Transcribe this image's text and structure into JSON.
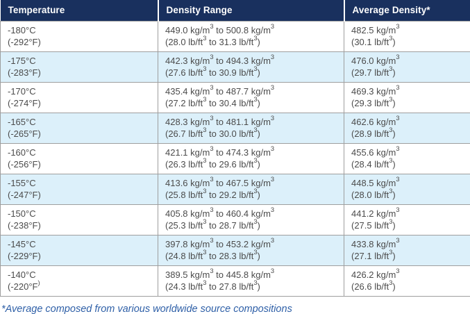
{
  "colors": {
    "header_bg": "#19305e",
    "header_text": "#ffffff",
    "row_alt_bg": "#dcf0fa",
    "border": "#9e9e9e",
    "cell_text": "#4b4b4b",
    "footnote_text": "#2e5fa7"
  },
  "table": {
    "columns": [
      {
        "label": "Temperature"
      },
      {
        "label": "Density Range"
      },
      {
        "label": "Average Density*"
      }
    ],
    "rows": [
      {
        "temperature": [
          "-180°C",
          "(-292°F)"
        ],
        "density_range": [
          "449.0 kg/m^3 to 500.8 kg/m^3",
          "(28.0 lb/ft^3 to 31.3 lb/ft^3)"
        ],
        "average_density": [
          "482.5 kg/m^3",
          "(30.1 lb/ft^3)"
        ]
      },
      {
        "temperature": [
          "-175°C",
          "(-283°F)"
        ],
        "density_range": [
          "442.3 kg/m^3 to 494.3 kg/m^3",
          "(27.6 lb/ft^3 to 30.9 lb/ft^3)"
        ],
        "average_density": [
          "476.0 kg/m^3",
          "(29.7 lb/ft^3)"
        ]
      },
      {
        "temperature": [
          "-170°C",
          "(-274°F)"
        ],
        "density_range": [
          "435.4 kg/m^3 to 487.7 kg/m^3",
          "(27.2 lb/ft^3 to 30.4 lb/ft^3)"
        ],
        "average_density": [
          "469.3 kg/m^3",
          "(29.3 lb/ft^3)"
        ]
      },
      {
        "temperature": [
          "-165°C",
          "(-265°F)"
        ],
        "density_range": [
          "428.3 kg/m^3 to 481.1 kg/m^3",
          "(26.7 lb/ft^3 to 30.0 lb/ft^3)"
        ],
        "average_density": [
          "462.6 kg/m^3",
          "(28.9 lb/ft^3)"
        ]
      },
      {
        "temperature": [
          "-160°C",
          "(-256°F)"
        ],
        "density_range": [
          "421.1 kg/m^3 to 474.3 kg/m^3",
          "(26.3 lb/ft^3 to 29.6 lb/ft^3)"
        ],
        "average_density": [
          "455.6 kg/m^3",
          "(28.4 lb/ft^3)"
        ]
      },
      {
        "temperature": [
          "-155°C",
          "(-247°F)"
        ],
        "density_range": [
          "413.6 kg/m^3 to 467.5 kg/m^3",
          "(25.8 lb/ft^3 to 29.2 lb/ft^3)"
        ],
        "average_density": [
          "448.5 kg/m^3",
          "(28.0 lb/ft^3)"
        ]
      },
      {
        "temperature": [
          "-150°C",
          "(-238°F)"
        ],
        "density_range": [
          "405.8 kg/m^3 to 460.4 kg/m^3",
          "(25.3 lb/ft^3 to 28.7 lb/ft^3)"
        ],
        "average_density": [
          "441.2 kg/m^3",
          "(27.5 lb/ft^3)"
        ]
      },
      {
        "temperature": [
          "-145°C",
          "(-229°F)"
        ],
        "density_range": [
          "397.8 kg/m^3 to 453.2 kg/m^3",
          "(24.8 lb/ft^3 to 28.3 lb/ft^3)"
        ],
        "average_density": [
          "433.8 kg/m^3",
          "(27.1 lb/ft^3)"
        ]
      },
      {
        "temperature": [
          "-140°C",
          "(-220°F^)"
        ],
        "density_range": [
          "389.5 kg/m^3 to 445.8 kg/m^3",
          "(24.3 lb/ft^3 to 27.8 lb/ft^3)"
        ],
        "average_density": [
          "426.2 kg/m^3",
          "(26.6 lb/ft^3)"
        ]
      }
    ]
  },
  "footnote": "*Average composed from various worldwide source compositions"
}
